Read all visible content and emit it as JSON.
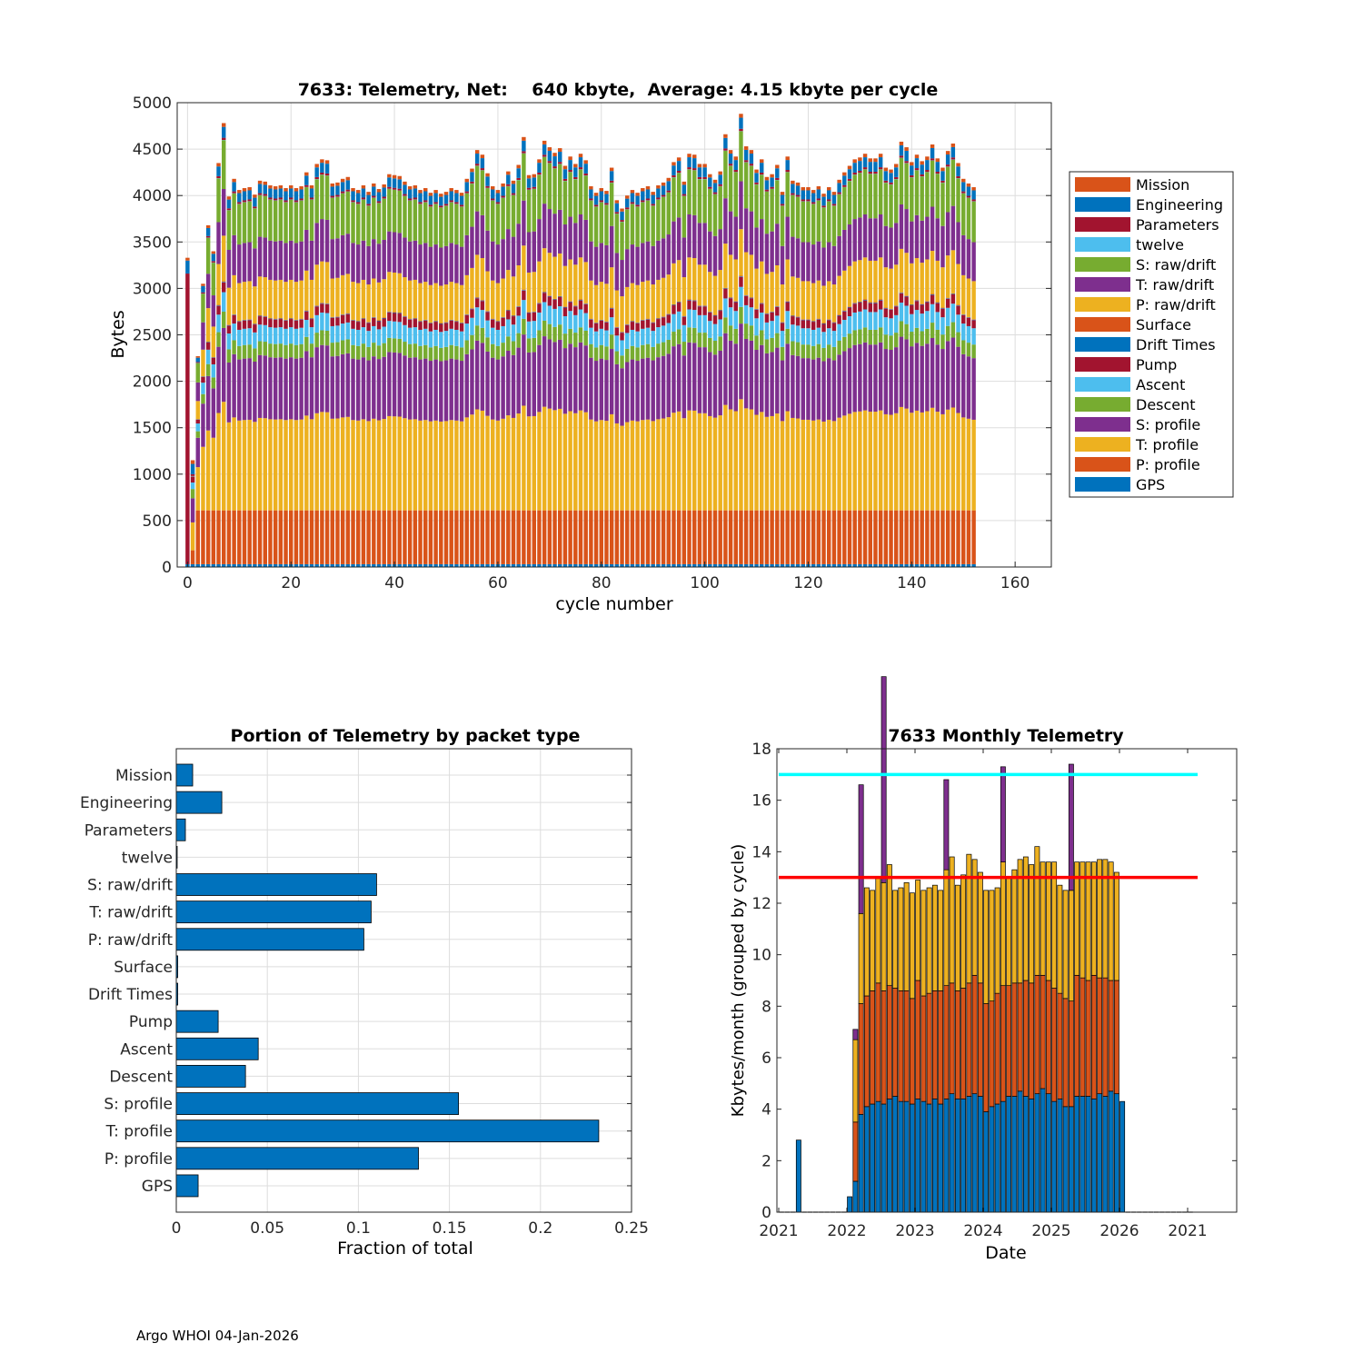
{
  "footer": "Argo WHOI 04-Jan-2026",
  "colors": {
    "blue": "#0072BD",
    "orange": "#D95319",
    "yellow": "#EDB120",
    "purple": "#7E2F8E",
    "green": "#77AC30",
    "cyan": "#4DBEEE",
    "maroon": "#A2142F",
    "cyan_line": "#00FFFF",
    "red_line": "#FF0000",
    "grid": "#dddddd"
  },
  "chart_data": [
    {
      "type": "stacked-bar",
      "title": "7633: Telemetry, Net:    640 kbyte,  Average: 4.15 kbyte per cycle",
      "xlabel": "cycle number",
      "ylabel": "Bytes",
      "xlim": [
        -2,
        167
      ],
      "ylim": [
        0,
        5000
      ],
      "xticks": [
        0,
        20,
        40,
        60,
        80,
        100,
        120,
        140,
        160
      ],
      "yticks": [
        0,
        500,
        1000,
        1500,
        2000,
        2500,
        3000,
        3500,
        4000,
        4500,
        5000
      ],
      "grid": true,
      "legend_position": "right",
      "series_order_bottom_to_top": [
        "GPS",
        "P: profile",
        "T: profile",
        "S: profile",
        "Descent",
        "Ascent",
        "Pump",
        "Drift Times",
        "Surface",
        "P: raw/drift",
        "T: raw/drift",
        "S: raw/drift",
        "twelve",
        "Parameters",
        "Engineering",
        "Mission"
      ],
      "legend": [
        {
          "name": "Mission",
          "color": "#D95319"
        },
        {
          "name": "Engineering",
          "color": "#0072BD"
        },
        {
          "name": "Parameters",
          "color": "#A2142F"
        },
        {
          "name": "twelve",
          "color": "#4DBEEE"
        },
        {
          "name": "S: raw/drift",
          "color": "#77AC30"
        },
        {
          "name": "T: raw/drift",
          "color": "#7E2F8E"
        },
        {
          "name": "P: raw/drift",
          "color": "#EDB120"
        },
        {
          "name": "Surface",
          "color": "#D95319"
        },
        {
          "name": "Drift Times",
          "color": "#0072BD"
        },
        {
          "name": "Pump",
          "color": "#A2142F"
        },
        {
          "name": "Ascent",
          "color": "#4DBEEE"
        },
        {
          "name": "Descent",
          "color": "#77AC30"
        },
        {
          "name": "S: profile",
          "color": "#7E2F8E"
        },
        {
          "name": "T: profile",
          "color": "#EDB120"
        },
        {
          "name": "P: profile",
          "color": "#D95319"
        },
        {
          "name": "GPS",
          "color": "#0072BD"
        }
      ],
      "cycles_first": 0,
      "cycles_last": 152,
      "typical_segments_bytes": {
        "GPS": 30,
        "P: profile": 580,
        "T: profile": 1000,
        "S: profile": 680,
        "Descent": 150,
        "Ascent": 180,
        "Pump": 90,
        "Drift Times": 5,
        "Surface": 5,
        "P: raw/drift": 420,
        "T: raw/drift": 430,
        "S: raw/drift": 450,
        "twelve": 2,
        "Parameters": 20,
        "Engineering": 100,
        "Mission": 35
      },
      "cycle_totals_bytes": [
        3330,
        1150,
        2270,
        3050,
        3680,
        3400,
        4350,
        4780,
        3990,
        4180,
        4060,
        4080,
        4090,
        4010,
        4160,
        4150,
        4110,
        4100,
        4110,
        4080,
        4110,
        4080,
        4100,
        4250,
        4110,
        4340,
        4390,
        4380,
        4130,
        4140,
        4180,
        4200,
        4080,
        4060,
        4110,
        4040,
        4130,
        4070,
        4120,
        4230,
        4220,
        4210,
        4150,
        4100,
        4110,
        4060,
        4080,
        4030,
        4060,
        4020,
        4040,
        4080,
        4060,
        4030,
        4180,
        4290,
        4490,
        4440,
        4240,
        4100,
        4060,
        4130,
        4260,
        4160,
        4330,
        4630,
        4220,
        4230,
        4390,
        4590,
        4520,
        4460,
        4510,
        4320,
        4420,
        4340,
        4450,
        4380,
        4100,
        4030,
        4080,
        4050,
        4300,
        3950,
        3860,
        4000,
        4060,
        4030,
        4080,
        4100,
        4040,
        4110,
        4140,
        4190,
        4360,
        4410,
        4150,
        4450,
        4440,
        4340,
        4340,
        4230,
        4170,
        4260,
        4660,
        4490,
        4420,
        4880,
        4530,
        4490,
        4280,
        4390,
        4200,
        4230,
        4330,
        4040,
        4420,
        4160,
        4140,
        4090,
        4090,
        4060,
        4100,
        4020,
        4090,
        4040,
        4170,
        4250,
        4320,
        4390,
        4410,
        4450,
        4400,
        4400,
        4450,
        4300,
        4280,
        4340,
        4580,
        4520,
        4360,
        4440,
        4370,
        4420,
        4550,
        4400,
        4300,
        4480,
        4560,
        4350,
        4180,
        4130,
        4090
      ]
    },
    {
      "type": "barh",
      "title": "Portion of Telemetry by packet type",
      "xlabel": "Fraction of total",
      "ylabel": "",
      "xlim": [
        0,
        0.25
      ],
      "xticks": [
        0,
        0.05,
        0.1,
        0.15,
        0.2,
        0.25
      ],
      "xtick_labels": [
        "0",
        "0.05",
        "0.1",
        "0.15",
        "0.2",
        "0.25"
      ],
      "grid": true,
      "categories": [
        "Mission",
        "Engineering",
        "Parameters",
        "twelve",
        "S: raw/drift",
        "T: raw/drift",
        "P: raw/drift",
        "Surface",
        "Drift Times",
        "Pump",
        "Ascent",
        "Descent",
        "S: profile",
        "T: profile",
        "P: profile",
        "GPS"
      ],
      "values": [
        0.009,
        0.025,
        0.005,
        0.0005,
        0.11,
        0.107,
        0.103,
        0.0008,
        0.0008,
        0.023,
        0.045,
        0.038,
        0.155,
        0.232,
        0.133,
        0.012
      ],
      "bar_color": "#0072BD"
    },
    {
      "type": "stacked-bar",
      "title": "7633 Monthly Telemetry",
      "xlabel": "Date",
      "ylabel": "Kbytes/month (grouped by cycle)",
      "ylim": [
        0,
        18
      ],
      "yticks": [
        0,
        2,
        4,
        6,
        8,
        10,
        12,
        14,
        16,
        18
      ],
      "xtick_labels": [
        "2021",
        "2022",
        "2023",
        "2024",
        "2025",
        "2026",
        "2021"
      ],
      "grid": false,
      "hlines": [
        {
          "y": 17,
          "color": "#00FFFF"
        },
        {
          "y": 13,
          "color": "#FF0000"
        }
      ],
      "months_2021": [
        0,
        0,
        0,
        2.8,
        0,
        0,
        0,
        0,
        0,
        0,
        0,
        0
      ],
      "months_first_label": "2022-01",
      "month_stacks": [
        [
          0.6,
          0,
          0,
          0
        ],
        [
          1.2,
          2.3,
          3.2,
          0.4
        ],
        [
          3.8,
          4.3,
          3.5,
          5.0
        ],
        [
          4.1,
          4.3,
          4.2,
          0
        ],
        [
          4.2,
          4.4,
          3.9,
          0
        ],
        [
          4.3,
          4.6,
          4.1,
          0
        ],
        [
          4.2,
          4.4,
          4.2,
          8.0
        ],
        [
          4.4,
          4.4,
          4.7,
          0
        ],
        [
          4.5,
          4.2,
          3.8,
          0
        ],
        [
          4.3,
          4.3,
          4.0,
          0
        ],
        [
          4.3,
          4.3,
          4.2,
          0
        ],
        [
          4.2,
          4.1,
          4.1,
          0
        ],
        [
          4.4,
          4.6,
          3.9,
          0
        ],
        [
          4.3,
          4.1,
          4.1,
          0
        ],
        [
          4.2,
          4.3,
          4.1,
          0
        ],
        [
          4.4,
          4.2,
          4.1,
          0
        ],
        [
          4.2,
          4.4,
          3.9,
          0
        ],
        [
          4.4,
          4.4,
          4.5,
          3.5
        ],
        [
          4.6,
          4.3,
          4.9,
          0
        ],
        [
          4.4,
          4.2,
          4.1,
          0
        ],
        [
          4.4,
          4.3,
          4.4,
          0
        ],
        [
          4.5,
          4.4,
          5.0,
          0
        ],
        [
          4.6,
          4.6,
          4.5,
          0
        ],
        [
          4.5,
          4.4,
          4.3,
          0
        ],
        [
          3.9,
          4.2,
          4.4,
          0
        ],
        [
          4.1,
          4.1,
          4.3,
          0
        ],
        [
          4.2,
          4.3,
          4.1,
          0
        ],
        [
          4.3,
          4.5,
          4.8,
          3.7
        ],
        [
          4.5,
          4.3,
          4.2,
          0
        ],
        [
          4.5,
          4.4,
          4.4,
          0
        ],
        [
          4.7,
          4.2,
          4.8,
          0
        ],
        [
          4.5,
          4.5,
          4.8,
          0
        ],
        [
          4.4,
          4.5,
          4.6,
          0
        ],
        [
          4.6,
          4.6,
          5.0,
          0
        ],
        [
          4.8,
          4.4,
          4.4,
          0
        ],
        [
          4.6,
          4.4,
          4.6,
          0
        ],
        [
          4.3,
          4.4,
          4.9,
          0
        ],
        [
          4.4,
          4.1,
          4.2,
          0
        ],
        [
          4.1,
          4.2,
          4.2,
          0
        ],
        [
          4.1,
          4.1,
          4.3,
          4.9
        ],
        [
          4.5,
          4.7,
          4.4,
          0
        ],
        [
          4.5,
          4.6,
          4.5,
          0
        ],
        [
          4.5,
          4.5,
          4.6,
          0
        ],
        [
          4.4,
          4.8,
          4.4,
          0
        ],
        [
          4.6,
          4.5,
          4.6,
          0
        ],
        [
          4.5,
          4.6,
          4.6,
          0
        ],
        [
          4.7,
          4.3,
          4.6,
          0
        ],
        [
          4.6,
          4.4,
          4.2,
          0
        ],
        [
          4.3,
          0,
          0,
          0
        ]
      ],
      "month_stack_colors": [
        "#0072BD",
        "#D95319",
        "#EDB120",
        "#7E2F8E"
      ]
    }
  ]
}
